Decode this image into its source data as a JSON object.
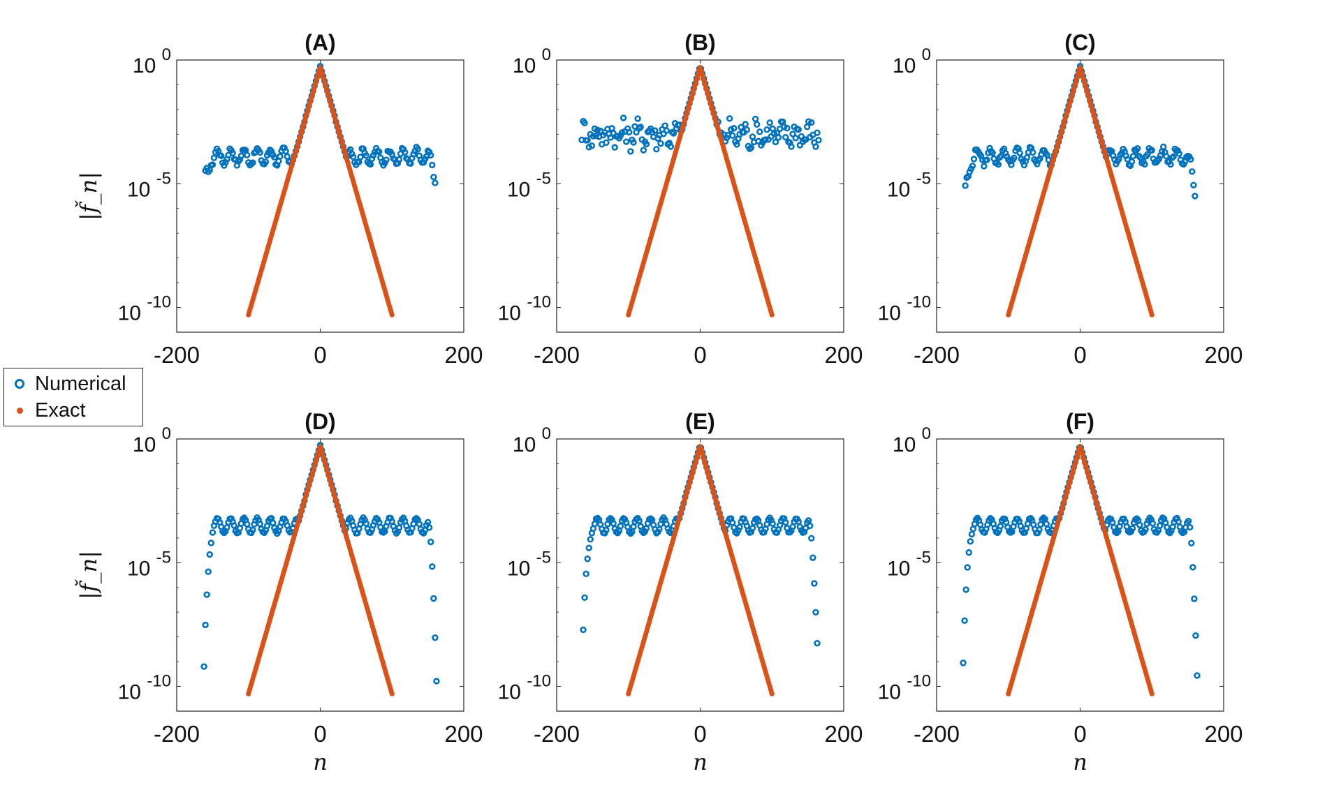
{
  "chart_data": {
    "type": "scatter",
    "grid": false,
    "legend": {
      "placement": "left",
      "entries": [
        {
          "name": "Numerical",
          "marker": "open-circle",
          "color": "#0072bd"
        },
        {
          "name": "Exact",
          "marker": "dot",
          "color": "#d95319"
        }
      ]
    },
    "shared": {
      "xlabel": "n",
      "ylabel": "|f̌_n|",
      "xlim": [
        -200,
        200
      ],
      "ylim_log10": [
        -11,
        0
      ],
      "xticks": [
        -200,
        0,
        200
      ],
      "xtick_labels": [
        "-200",
        "0",
        "200"
      ],
      "yticks": [
        0,
        -5,
        -10
      ],
      "ytick_labels": [
        {
          "base": "10",
          "exp": "0"
        },
        {
          "base": "10",
          "exp": "-5"
        },
        {
          "base": "10",
          "exp": "-10"
        }
      ],
      "exact_series": {
        "name": "Exact",
        "decay_per_unit_n_log10": -0.1,
        "peak_log10": -0.3,
        "n_range": [
          -100,
          100
        ]
      }
    },
    "panels": [
      {
        "title": "(A)",
        "noise": {
          "plateau_log10": -3.9,
          "edge": 160,
          "edge_drop_log10": -4.8,
          "ripple": 0.3,
          "scatter": 0.2
        }
      },
      {
        "title": "(B)",
        "noise": {
          "plateau_log10": -3.0,
          "edge": 165,
          "edge_drop_log10": -3.0,
          "ripple": 0.25,
          "scatter": 0.9
        }
      },
      {
        "title": "(C)",
        "noise": {
          "plateau_log10": -3.9,
          "edge": 160,
          "edge_drop_log10": -5.3,
          "ripple": 0.3,
          "scatter": 0.2
        }
      },
      {
        "title": "(D)",
        "noise": {
          "plateau_log10": -3.5,
          "edge": 162,
          "edge_drop_log10": -9.5,
          "ripple": 0.3,
          "scatter": 0.05
        }
      },
      {
        "title": "(E)",
        "noise": {
          "plateau_log10": -3.5,
          "edge": 163,
          "edge_drop_log10": -8.0,
          "ripple": 0.3,
          "scatter": 0.05
        }
      },
      {
        "title": "(F)",
        "noise": {
          "plateau_log10": -3.5,
          "edge": 163,
          "edge_drop_log10": -9.3,
          "ripple": 0.3,
          "scatter": 0.05
        }
      }
    ]
  }
}
